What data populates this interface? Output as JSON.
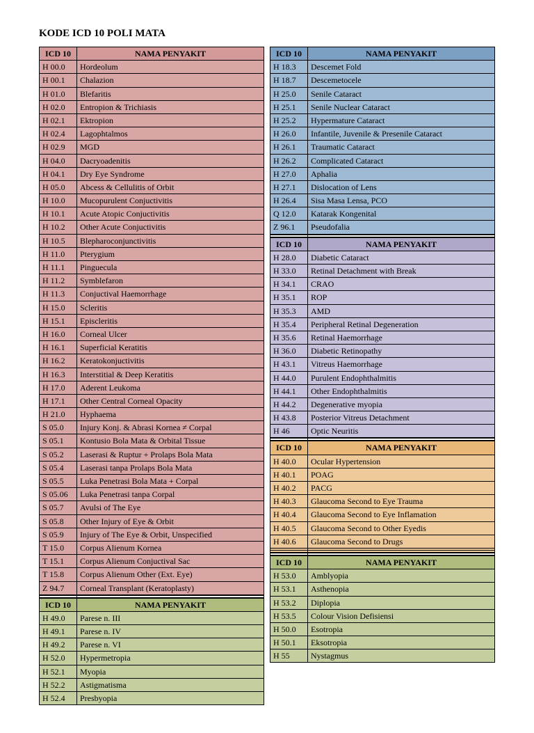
{
  "title": "KODE ICD 10 POLI MATA",
  "headers": {
    "code": "ICD 10",
    "name": "NAMA PENYAKIT"
  },
  "colors": {
    "rose": {
      "header": "#d49a9a",
      "row": "#d9a6a6"
    },
    "blue": {
      "header": "#7ba0c4",
      "row": "#9db9d3"
    },
    "violet": {
      "header": "#b0a7c9",
      "row": "#c6c0da"
    },
    "orange": {
      "header": "#e9b879",
      "row": "#eec99a"
    },
    "green": {
      "header": "#aebd7e",
      "row": "#c3cf9f"
    }
  },
  "sections": {
    "rose": [
      [
        "H 00.0",
        "Hordeolum"
      ],
      [
        "H 00.1",
        "Chalazion"
      ],
      [
        "H 01.0",
        "Blefaritis"
      ],
      [
        "H 02.0",
        "Entropion & Trichiasis"
      ],
      [
        "H 02.1",
        "Ektropion"
      ],
      [
        "H 02.4",
        "Lagophtalmos"
      ],
      [
        "H 02.9",
        "MGD"
      ],
      [
        "H 04.0",
        "Dacryoadenitis"
      ],
      [
        "H 04.1",
        "Dry Eye Syndrome"
      ],
      [
        "H 05.0",
        "Abcess & Cellulitis of Orbit"
      ],
      [
        "H 10.0",
        "Mucopurulent Conjuctivitis"
      ],
      [
        "H 10.1",
        "Acute Atopic Conjuctivitis"
      ],
      [
        "H 10.2",
        "Other Acute Conjuctivitis"
      ],
      [
        "H 10.5",
        "Blepharoconjunctivitis"
      ],
      [
        "H 11.0",
        "Pterygium"
      ],
      [
        "H 11.1",
        "Pinguecula"
      ],
      [
        "H 11.2",
        "Symblefaron"
      ],
      [
        "H 11.3",
        "Conjuctival Haemorrhage"
      ],
      [
        "H 15.0",
        "Scleritis"
      ],
      [
        "H 15.1",
        "Episcleritis"
      ],
      [
        "H 16.0",
        "Corneal Ulcer"
      ],
      [
        "H 16.1",
        "Superficial Keratitis"
      ],
      [
        "H 16.2",
        "Keratokonjuctivitis"
      ],
      [
        "H 16.3",
        "Interstitial & Deep Keratitis"
      ],
      [
        "H 17.0",
        "Aderent Leukoma"
      ],
      [
        "H 17.1",
        "Other Central Corneal Opacity"
      ],
      [
        "H 21.0",
        "Hyphaema"
      ],
      [
        "S 05.0",
        "Injury Konj. & Abrasi Kornea ≠ Corpal"
      ],
      [
        "S 05.1",
        "Kontusio Bola Mata & Orbital Tissue"
      ],
      [
        "S 05.2",
        "Laserasi & Ruptur + Prolaps Bola Mata"
      ],
      [
        "S 05.4",
        "Laserasi tanpa Prolaps Bola Mata"
      ],
      [
        "S 05.5",
        "Luka Penetrasi Bola Mata + Corpal"
      ],
      [
        "S 05.06",
        "Luka Penetrasi tanpa Corpal"
      ],
      [
        "S 05.7",
        "Avulsi of The Eye"
      ],
      [
        "S 05.8",
        "Other Injury of Eye & Orbit"
      ],
      [
        "S 05.9",
        "Injury of The Eye & Orbit, Unspecified"
      ],
      [
        "T 15.0",
        "Corpus Alienum Kornea"
      ],
      [
        "T 15.1",
        "Corpus Alienum Conjuctival Sac"
      ],
      [
        "T 15.8",
        "Corpus Alienum Other (Ext. Eye)"
      ],
      [
        "Z 94.7",
        "Corneal Transplant (Keratoplasty)"
      ]
    ],
    "blue": [
      [
        "H 18.3",
        "Descemet Fold"
      ],
      [
        "H 18.7",
        "Descemetocele"
      ],
      [
        "H 25.0",
        "Senile Cataract"
      ],
      [
        "H 25.1",
        "Senile Nuclear Cataract"
      ],
      [
        "H 25.2",
        "Hypermature Cataract"
      ],
      [
        "H 26.0",
        "Infantile, Juvenile & Presenile  Cataract"
      ],
      [
        "H 26.1",
        "Traumatic Cataract"
      ],
      [
        "H 26.2",
        "Complicated Cataract"
      ],
      [
        "H 27.0",
        "Aphalia"
      ],
      [
        "H 27.1",
        "Dislocation of Lens"
      ],
      [
        "H 26.4",
        "Sisa Masa Lensa, PCO"
      ],
      [
        "Q 12.0",
        "Katarak Kongenital"
      ],
      [
        "Z 96.1",
        "Pseudofalia"
      ]
    ],
    "violet": [
      [
        "H 28.0",
        "Diabetic Cataract"
      ],
      [
        "H 33.0",
        "Retinal Detachment with Break"
      ],
      [
        "H 34.1",
        "CRAO"
      ],
      [
        "H 35.1",
        "ROP"
      ],
      [
        "H 35.3",
        "AMD"
      ],
      [
        "H 35.4",
        "Peripheral Retinal Degeneration"
      ],
      [
        "H 35.6",
        "Retinal Haemorrhage"
      ],
      [
        "H 36.0",
        "Diabetic Retinopathy"
      ],
      [
        "H 43.1",
        "Vitreus Haemorrhage"
      ],
      [
        "H 44.0",
        "Purulent Endophthalmitis"
      ],
      [
        "H 44.1",
        "Other Endophthalmitis"
      ],
      [
        "H 44.2",
        "Degenerative myopia"
      ],
      [
        "H 43.8",
        "Posterior Vitreus Detachment"
      ],
      [
        "H 46",
        "Optic Neuritis"
      ]
    ],
    "orange": [
      [
        "H 40.0",
        "Ocular Hypertension"
      ],
      [
        "H 40.1",
        "POAG"
      ],
      [
        "H 40.2",
        "PACG"
      ],
      [
        "H 40.3",
        "Glaucoma Second to Eye Trauma"
      ],
      [
        "H 40.4",
        "Glaucoma Second to Eye Inflamation"
      ],
      [
        "H 40.5",
        "Glaucoma Second to Other Eyedis"
      ],
      [
        "H 40.6",
        "Glaucoma Second to Drugs"
      ],
      [
        "",
        ""
      ],
      [
        "",
        ""
      ]
    ],
    "greenLeft": [
      [
        "H 49.0",
        "Parese n. III"
      ],
      [
        "H 49.1",
        "Parese n. IV"
      ],
      [
        "H 49.2",
        "Parese n. VI"
      ],
      [
        "H 52.0",
        "Hypermetropia"
      ],
      [
        "H 52.1",
        "Myopia"
      ],
      [
        "H 52.2",
        "Astigmatisma"
      ],
      [
        "H 52.4",
        "Presbyopia"
      ]
    ],
    "greenRight": [
      [
        "H 53.0",
        "Amblyopia"
      ],
      [
        "H 53.1",
        "Asthenopia"
      ],
      [
        "H 53.2",
        "Diplopia"
      ],
      [
        "H 53.5",
        "Colour Vision Defisiensi"
      ],
      [
        "H 50.0",
        "Esotropia"
      ],
      [
        "H 50.1",
        "Eksotropia"
      ],
      [
        "H 55",
        "Nystagmus"
      ]
    ]
  }
}
